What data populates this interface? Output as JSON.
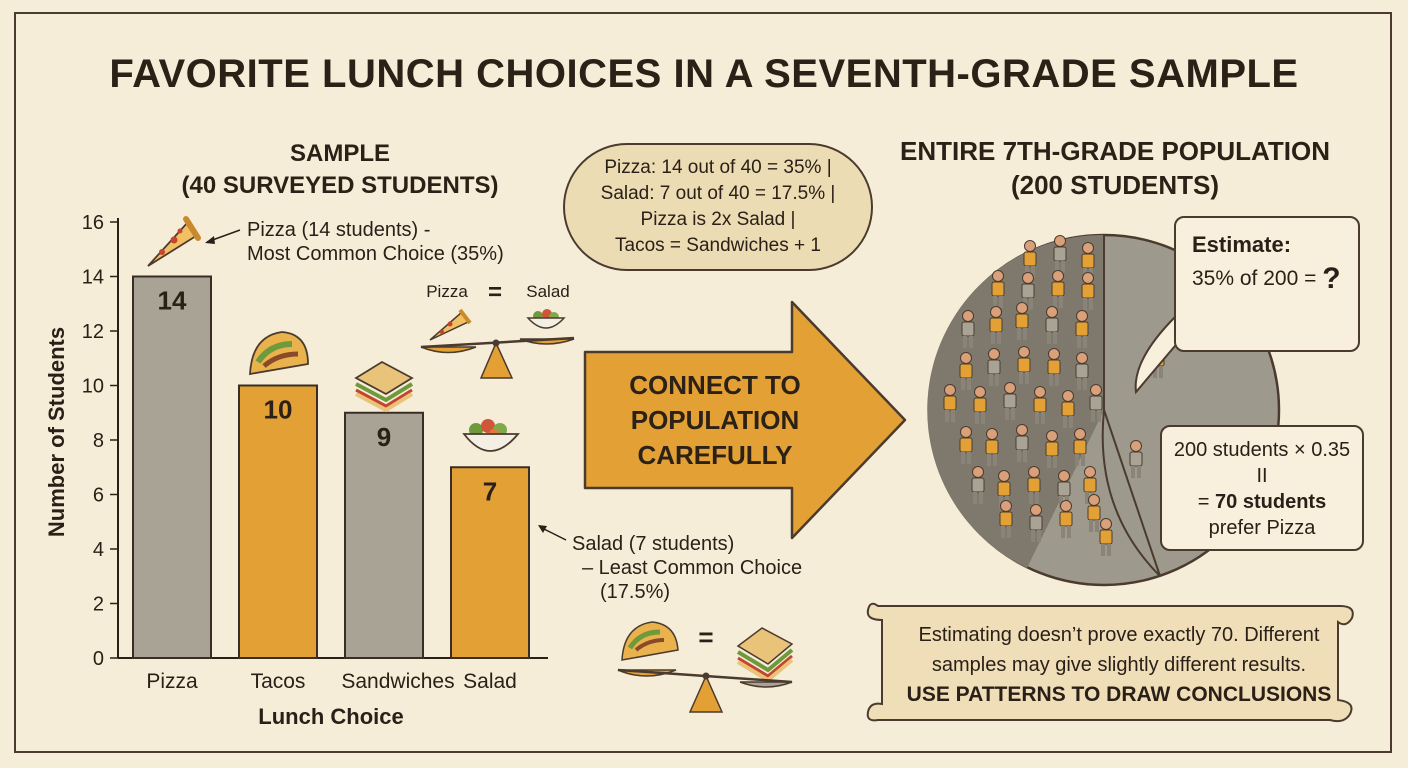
{
  "title": "FAVORITE LUNCH CHOICES IN A SEVENTH-GRADE SAMPLE",
  "sample_heading": [
    "SAMPLE",
    "(40 SURVEYED STUDENTS)"
  ],
  "population_heading": [
    "ENTIRE 7TH-GRADE POPULATION",
    "(200 STUDENTS)"
  ],
  "stats_bubble": [
    "Pizza: 14 out of 40 = 35% |",
    "Salad: 7 out of 40 = 17.5% |",
    "Pizza is 2x Salad |",
    "Tacos = Sandwiches + 1"
  ],
  "arrow_text": [
    "CONNECT TO",
    "POPULATION",
    "CAREFULLY"
  ],
  "pizza_annotation": [
    "Pizza (14 students) -",
    "Most Common Choice (35%)"
  ],
  "salad_annotation": [
    "Salad (7 students)",
    "– Least Common Choice",
    "(17.5%)"
  ],
  "balance_top": {
    "left": "Pizza",
    "equals": "=",
    "right": "Salad"
  },
  "balance_bottom": {
    "equals": "="
  },
  "estimate": {
    "label": "Estimate:",
    "line": "35% of 200 =",
    "question": "?",
    "thought": "?"
  },
  "calculation": {
    "line1": "200 students × 0.35",
    "line2": "II",
    "line3_prefix": "= ",
    "line3_bold": "70 students",
    "line4": "prefer Pizza"
  },
  "scroll": [
    "Estimating doesn’t prove exactly 70. Different",
    "samples may give slightly different results.",
    "USE PATTERNS TO DRAW CONCLUSIONS"
  ],
  "colors": {
    "gray_bar": "#a9a396",
    "orange_bar": "#e2a035",
    "background": "#f6edd9",
    "pie_gray": "#9e998d"
  },
  "chart_data": {
    "type": "bar",
    "categories": [
      "Pizza",
      "Tacos",
      "Sandwiches",
      "Salad"
    ],
    "values": [
      14,
      10,
      9,
      7
    ],
    "bar_colors": [
      "gray",
      "orange",
      "gray",
      "orange"
    ],
    "data_labels": [
      "14",
      "10",
      "9",
      "7"
    ],
    "xlabel": "Lunch Choice",
    "ylabel": "Number of Students",
    "ylim": [
      0,
      16
    ],
    "yticks": [
      0,
      2,
      4,
      6,
      8,
      10,
      12,
      14,
      16
    ],
    "icons": [
      "pizza-icon",
      "taco-icon",
      "sandwich-icon",
      "salad-icon"
    ]
  }
}
